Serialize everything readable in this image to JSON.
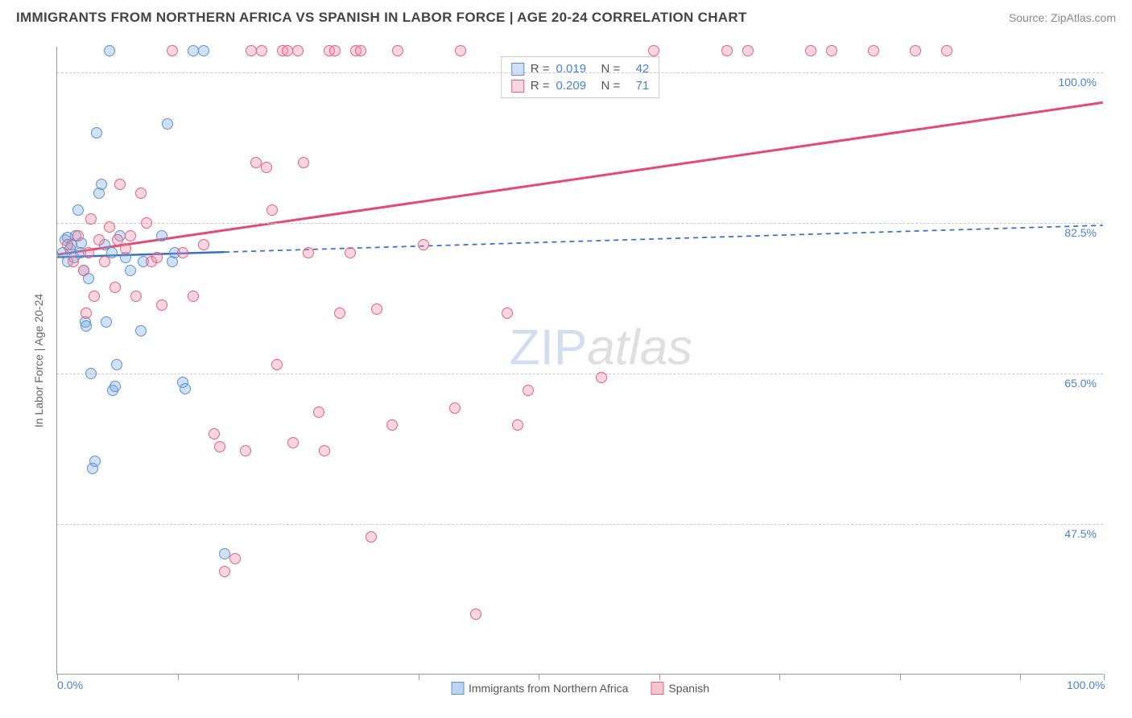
{
  "header": {
    "title": "IMMIGRANTS FROM NORTHERN AFRICA VS SPANISH IN LABOR FORCE | AGE 20-24 CORRELATION CHART",
    "source": "Source: ZipAtlas.com"
  },
  "chart": {
    "type": "scatter",
    "y_title": "In Labor Force | Age 20-24",
    "xlim": [
      0,
      100
    ],
    "ylim": [
      30,
      103
    ],
    "x_ticks": [
      0,
      11.5,
      23,
      34.5,
      46,
      57.5,
      69,
      80.5,
      92,
      100
    ],
    "y_gridlines": [
      {
        "v": 47.5,
        "label": "47.5%"
      },
      {
        "v": 65.0,
        "label": "65.0%"
      },
      {
        "v": 82.5,
        "label": "82.5%"
      },
      {
        "v": 100.0,
        "label": "100.0%"
      }
    ],
    "x_labels": [
      {
        "v": 0,
        "label": "0.0%"
      },
      {
        "v": 100,
        "label": "100.0%"
      }
    ],
    "watermark": {
      "zip": "ZIP",
      "atlas": "atlas"
    },
    "series": [
      {
        "name": "Immigrants from Northern Africa",
        "fill": "rgba(120,170,225,0.35)",
        "stroke": "#5b93d0",
        "stroke_w": 1,
        "marker_size": 14,
        "r_value": "0.019",
        "n_value": "42",
        "trend": {
          "x1": 0,
          "y1": 78.5,
          "x2": 16,
          "y2": 79.0,
          "x2d": 100,
          "y2d": 82.2,
          "solid_until": 16,
          "dash": "6,5",
          "color": "#3b6fc4",
          "width": 2.5
        },
        "points": [
          [
            0.5,
            79
          ],
          [
            0.8,
            80.5
          ],
          [
            1.0,
            78
          ],
          [
            1.2,
            79.5
          ],
          [
            1.4,
            80
          ],
          [
            1.6,
            78.5
          ],
          [
            1.8,
            81
          ],
          [
            2.0,
            84
          ],
          [
            2.2,
            79
          ],
          [
            2.5,
            77
          ],
          [
            2.7,
            71
          ],
          [
            2.8,
            70.5
          ],
          [
            3.0,
            76
          ],
          [
            3.2,
            65
          ],
          [
            3.4,
            54
          ],
          [
            3.6,
            54.8
          ],
          [
            3.8,
            93
          ],
          [
            4.0,
            86
          ],
          [
            4.2,
            87
          ],
          [
            4.5,
            80
          ],
          [
            4.7,
            71
          ],
          [
            5.0,
            102.5
          ],
          [
            5.3,
            63
          ],
          [
            5.5,
            63.5
          ],
          [
            5.7,
            66
          ],
          [
            6.0,
            81
          ],
          [
            8.0,
            70
          ],
          [
            8.2,
            78
          ],
          [
            10.0,
            81
          ],
          [
            10.5,
            94
          ],
          [
            11.0,
            78
          ],
          [
            11.2,
            79
          ],
          [
            12.0,
            64
          ],
          [
            12.2,
            63.2
          ],
          [
            13.0,
            102.5
          ],
          [
            14.0,
            102.5
          ],
          [
            16.0,
            44
          ],
          [
            5.2,
            79
          ],
          [
            6.5,
            78.5
          ],
          [
            7.0,
            77
          ],
          [
            1.0,
            80.8
          ],
          [
            2.3,
            80.2
          ]
        ]
      },
      {
        "name": "Spanish",
        "fill": "rgba(240,140,165,0.35)",
        "stroke": "#e8607f",
        "stroke_w": 1,
        "marker_size": 14,
        "r_value": "0.209",
        "n_value": "71",
        "trend": {
          "x1": 0,
          "y1": 78.8,
          "x2": 100,
          "y2": 96.5,
          "solid_until": 100,
          "dash": "",
          "color": "#e54a72",
          "width": 3
        },
        "points": [
          [
            1,
            80
          ],
          [
            1.5,
            78
          ],
          [
            2,
            81
          ],
          [
            2.5,
            77
          ],
          [
            2.8,
            72
          ],
          [
            3,
            79
          ],
          [
            3.5,
            74
          ],
          [
            4,
            80.5
          ],
          [
            4.5,
            78
          ],
          [
            5,
            82
          ],
          [
            5.5,
            75
          ],
          [
            6,
            87
          ],
          [
            6.5,
            79.5
          ],
          [
            7,
            81
          ],
          [
            7.5,
            74
          ],
          [
            8,
            86
          ],
          [
            8.5,
            82.5
          ],
          [
            9,
            78
          ],
          [
            10,
            73
          ],
          [
            11,
            102.5
          ],
          [
            12,
            79
          ],
          [
            13,
            74
          ],
          [
            14,
            80
          ],
          [
            15,
            58
          ],
          [
            15.5,
            56.5
          ],
          [
            16,
            42
          ],
          [
            17,
            43.5
          ],
          [
            18,
            56
          ],
          [
            18.5,
            102.5
          ],
          [
            19,
            89.5
          ],
          [
            19.5,
            102.5
          ],
          [
            20,
            89
          ],
          [
            20.5,
            84
          ],
          [
            21,
            66
          ],
          [
            21.5,
            102.5
          ],
          [
            22,
            102.5
          ],
          [
            22.5,
            57
          ],
          [
            23,
            102.5
          ],
          [
            23.5,
            89.5
          ],
          [
            24,
            79
          ],
          [
            25,
            60.5
          ],
          [
            25.5,
            56
          ],
          [
            26,
            102.5
          ],
          [
            26.5,
            102.5
          ],
          [
            27,
            72
          ],
          [
            28,
            79
          ],
          [
            28.5,
            102.5
          ],
          [
            29,
            102.5
          ],
          [
            30,
            46
          ],
          [
            30.5,
            72.5
          ],
          [
            32,
            59
          ],
          [
            32.5,
            102.5
          ],
          [
            35,
            80
          ],
          [
            38,
            61
          ],
          [
            38.5,
            102.5
          ],
          [
            40,
            37
          ],
          [
            43,
            72
          ],
          [
            44,
            59
          ],
          [
            45,
            63
          ],
          [
            52,
            64.5
          ],
          [
            57,
            102.5
          ],
          [
            64,
            102.5
          ],
          [
            66,
            102.5
          ],
          [
            72,
            102.5
          ],
          [
            74,
            102.5
          ],
          [
            78,
            102.5
          ],
          [
            82,
            102.5
          ],
          [
            85,
            102.5
          ],
          [
            3.2,
            83
          ],
          [
            5.8,
            80.5
          ],
          [
            9.5,
            78.5
          ]
        ]
      }
    ],
    "legend_stats_headers": {
      "r": "R =",
      "n": "N ="
    },
    "bottom_legend": [
      {
        "label": "Immigrants from Northern Africa",
        "fill": "rgba(120,170,225,0.5)",
        "stroke": "#5b93d0"
      },
      {
        "label": "Spanish",
        "fill": "rgba(240,140,165,0.5)",
        "stroke": "#e8607f"
      }
    ]
  }
}
